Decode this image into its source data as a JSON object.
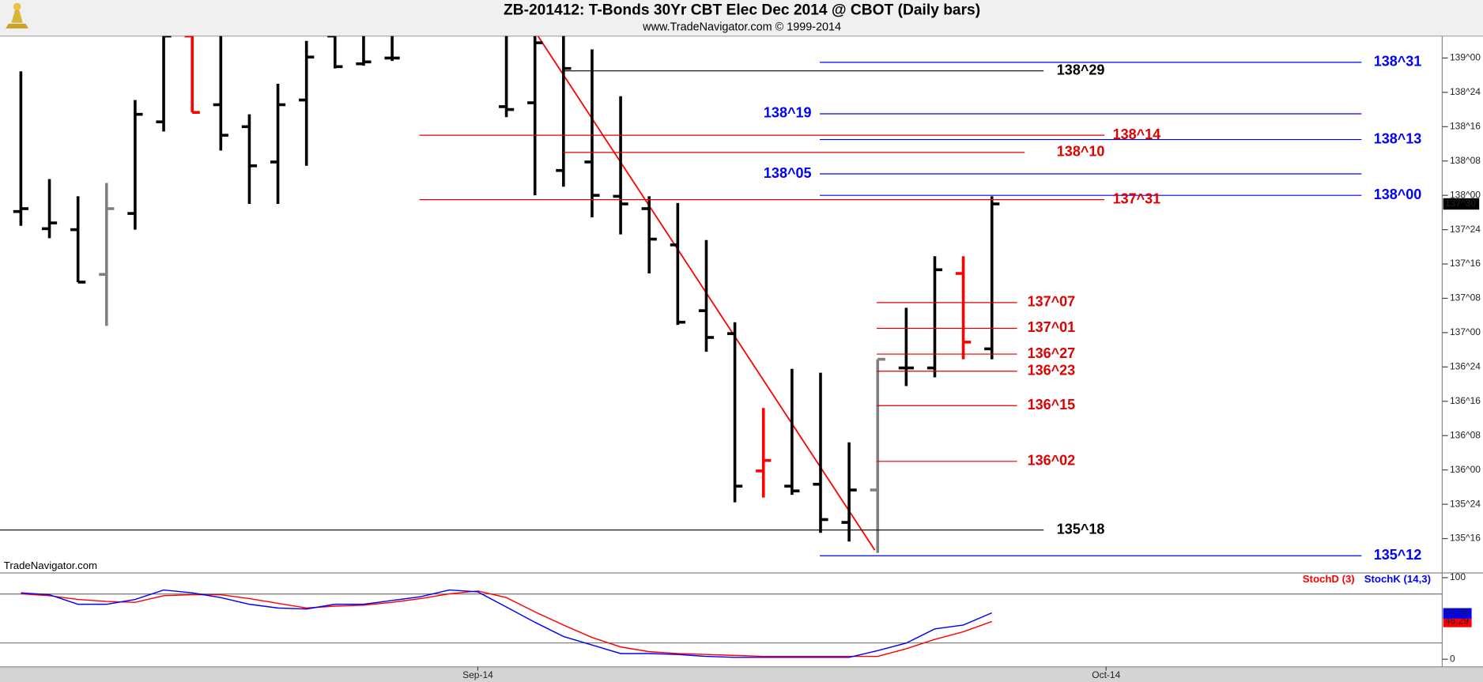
{
  "chart_data": [
    {
      "type": "ohlc",
      "title": "ZB-201412:  T-Bonds 30Yr CBT Elec Dec 2014 @ CBOT  (Daily bars)",
      "subtitle": "www.TradeNavigator.com © 1999-2014",
      "source": "TradeNavigator.com",
      "ylim": [
        135.257,
        139.16
      ],
      "yticks": [
        {
          "value": 139,
          "label": "139^00"
        },
        {
          "value": 138.75,
          "label": "138^24"
        },
        {
          "value": 138.5,
          "label": "138^16"
        },
        {
          "value": 138.25,
          "label": "138^08"
        },
        {
          "value": 138,
          "label": "138^00"
        },
        {
          "value": 137.75,
          "label": "137^24"
        },
        {
          "value": 137.5,
          "label": "137^16"
        },
        {
          "value": 137.25,
          "label": "137^08"
        },
        {
          "value": 137,
          "label": "137^00"
        },
        {
          "value": 136.75,
          "label": "136^24"
        },
        {
          "value": 136.5,
          "label": "136^16"
        },
        {
          "value": 136.25,
          "label": "136^08"
        },
        {
          "value": 136,
          "label": "136^00"
        },
        {
          "value": 135.75,
          "label": "135^24"
        },
        {
          "value": 135.5,
          "label": "135^16"
        }
      ],
      "open": [
        137.882,
        137.757,
        137.75,
        137.424,
        137.868,
        138.535,
        139.16,
        138.66,
        138.5,
        138.243,
        138.694,
        139.16,
        138.958,
        139.0,
        null,
        null,
        null,
        138.646,
        138.674,
        138.181,
        138.243,
        137.993,
        137.903,
        137.639,
        137.16,
        136.993,
        135.993,
        135.882,
        135.896,
        135.618,
        135.854,
        136.743,
        136.743,
        137.431,
        136.882,
        null,
        null,
        null,
        null,
        null,
        null,
        null,
        null,
        null,
        null,
        null,
        null,
        null,
        null,
        null
      ],
      "high": [
        138.903,
        138.118,
        137.993,
        138.09,
        138.694,
        139.16,
        139.16,
        139.16,
        138.59,
        138.8125,
        139.125,
        139.16,
        139.16,
        139.16,
        null,
        null,
        null,
        139.16,
        139.16,
        139.16,
        139.0625,
        138.722,
        137.993,
        137.944,
        137.674,
        137.076,
        136.451,
        136.736,
        136.708,
        136.201,
        136.806,
        137.181,
        137.556,
        137.556,
        137.993,
        null,
        null,
        null,
        null,
        null,
        null,
        null,
        null,
        null,
        null,
        null,
        null,
        null,
        null,
        null
      ],
      "low": [
        137.778,
        137.688,
        137.368,
        137.049,
        137.75,
        138.465,
        138.604,
        138.326,
        137.9375,
        137.9375,
        138.215,
        138.924,
        138.944,
        138.979,
        null,
        null,
        null,
        138.569,
        138.0,
        138.0625,
        137.84,
        137.715,
        137.431,
        137.056,
        136.861,
        135.764,
        135.799,
        135.819,
        135.542,
        135.479,
        135.396,
        136.611,
        136.674,
        136.806,
        136.806,
        null,
        null,
        null,
        null,
        null,
        null,
        null,
        null,
        null,
        null,
        null,
        null,
        null,
        null,
        null
      ],
      "close": [
        137.903,
        137.799,
        137.368,
        137.903,
        138.59,
        139.16,
        138.604,
        138.4375,
        138.215,
        138.66,
        139.007,
        138.9375,
        138.972,
        139.0,
        null,
        null,
        null,
        138.625,
        139.111,
        138.924,
        138.0,
        137.9375,
        137.681,
        137.076,
        136.965,
        135.882,
        136.069,
        135.847,
        135.639,
        135.854,
        136.806,
        136.743,
        137.458,
        136.931,
        137.9375,
        null,
        null,
        null,
        null,
        null,
        null,
        null,
        null,
        null,
        null,
        null,
        null,
        null,
        null,
        null
      ],
      "colors": [
        "#000000",
        "#000000",
        "#000000",
        "#808080",
        "#000000",
        "#000000",
        "#ff0000",
        "#000000",
        "#000000",
        "#000000",
        "#000000",
        "#000000",
        "#000000",
        "#000000",
        null,
        null,
        null,
        "#000000",
        "#000000",
        "#000000",
        "#000000",
        "#000000",
        "#000000",
        "#000000",
        "#000000",
        "#000000",
        "#ff0000",
        "#000000",
        "#000000",
        "#000000",
        "#808080",
        "#000000",
        "#000000",
        "#ff0000",
        "#000000",
        null,
        null,
        null,
        null,
        null,
        null,
        null,
        null,
        null,
        null,
        null,
        null,
        null,
        null,
        null
      ],
      "last_price": {
        "value": 137.9375,
        "label": "137^30"
      },
      "levels": [
        {
          "value": 138.96875,
          "label": "138^31",
          "color": "#0000ff"
        },
        {
          "value": 138.90625,
          "label": "138^29",
          "color": "#000000"
        },
        {
          "value": 138.59375,
          "label": "138^19",
          "color": "#0000ff"
        },
        {
          "value": 138.4375,
          "label": "138^14",
          "color": "#e00000"
        },
        {
          "value": 138.40625,
          "label": "138^13",
          "color": "#0000ff"
        },
        {
          "value": 138.3125,
          "label": "138^10",
          "color": "#e00000"
        },
        {
          "value": 138.15625,
          "label": "138^05",
          "color": "#0000ff"
        },
        {
          "value": 138.0,
          "label": "138^00",
          "color": "#0000ff"
        },
        {
          "value": 137.96875,
          "label": "137^31",
          "color": "#e00000"
        },
        {
          "value": 137.21875,
          "label": "137^07",
          "color": "#e00000"
        },
        {
          "value": 137.03125,
          "label": "137^01",
          "color": "#e00000"
        },
        {
          "value": 136.84375,
          "label": "136^27",
          "color": "#e00000"
        },
        {
          "value": 136.71875,
          "label": "136^23",
          "color": "#e00000"
        },
        {
          "value": 136.46875,
          "label": "136^15",
          "color": "#e00000"
        },
        {
          "value": 136.0625,
          "label": "136^02",
          "color": "#e00000"
        },
        {
          "value": 135.5625,
          "label": "135^18",
          "color": "#000000"
        },
        {
          "value": 135.375,
          "label": "135^12",
          "color": "#0000ff"
        }
      ]
    },
    {
      "type": "line",
      "categories": [
        null,
        null,
        null,
        null,
        null,
        null,
        null,
        null,
        null,
        null,
        null,
        null,
        null,
        null,
        null,
        null,
        "Sep-14",
        null,
        null,
        null,
        null,
        null,
        null,
        null,
        null,
        null,
        null,
        null,
        null,
        null,
        null,
        null,
        null,
        null,
        null,
        null,
        null,
        null,
        "Oct-14",
        null,
        null,
        null,
        null,
        null,
        null,
        null,
        null,
        null,
        null,
        null
      ],
      "ylim": [
        -9.3,
        104.7
      ],
      "yticks": [
        0,
        100
      ],
      "reference_lines": [
        80,
        20
      ],
      "legend": "top-right",
      "series": [
        {
          "name": "StochD (3)",
          "color": "#ff0000",
          "values": [
            80.2,
            77.9,
            73.3,
            70.9,
            69.8,
            77.9,
            79.1,
            79.1,
            74.4,
            68.6,
            62.8,
            65.1,
            66.3,
            69.8,
            74.4,
            80.2,
            83.7,
            75.6,
            58.1,
            41.9,
            26.7,
            15.1,
            9.3,
            7.0,
            5.8,
            4.7,
            3.5,
            3.5,
            3.5,
            3.5,
            3.5,
            12.8,
            24.4,
            33.7,
            46.29,
            null,
            null,
            null,
            null,
            null,
            null,
            null,
            null,
            null,
            null,
            null,
            null,
            null,
            null,
            null
          ]
        },
        {
          "name": "StochK (14,3)",
          "color": "#0000ff",
          "values": [
            81.4,
            79.1,
            67.4,
            67.4,
            73.3,
            84.9,
            81.4,
            75.6,
            67.4,
            62.8,
            61.6,
            67.4,
            67.4,
            72.1,
            76.7,
            84.9,
            82.6,
            64.0,
            45.3,
            27.9,
            17.4,
            7.0,
            7.0,
            5.8,
            3.5,
            2.3,
            2.3,
            2.3,
            2.3,
            2.3,
            10.5,
            19.8,
            37.2,
            41.9,
            56.89,
            null,
            null,
            null,
            null,
            null,
            null,
            null,
            null,
            null,
            null,
            null,
            null,
            null,
            null,
            null
          ]
        }
      ]
    }
  ]
}
